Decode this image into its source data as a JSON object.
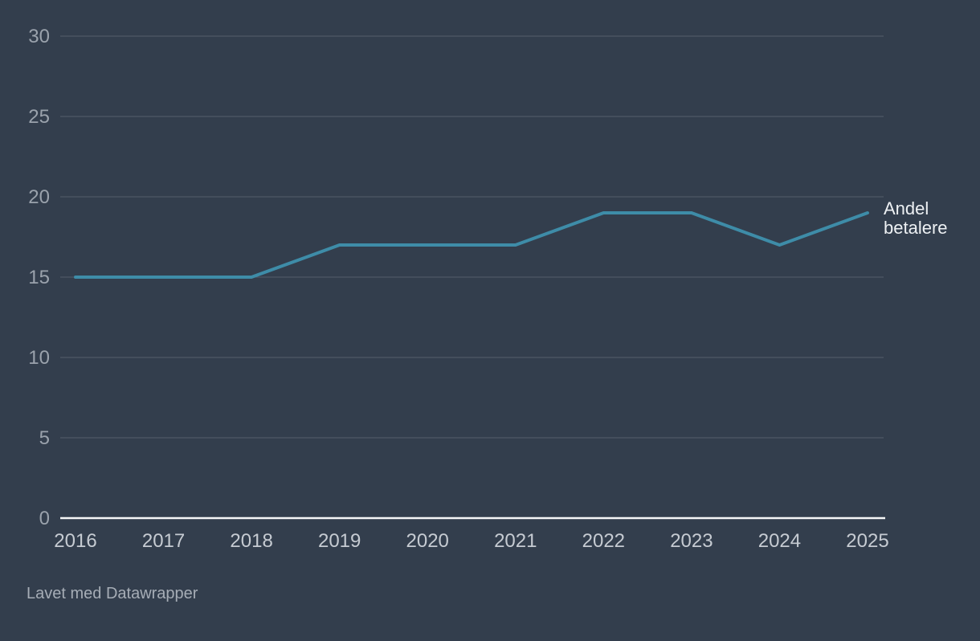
{
  "colors": {
    "background": "#333e4d",
    "line": "#3e8ca8",
    "grid": "#565f6c",
    "baseline": "#f5f6f7",
    "y_tick_text": "#9aa2ac",
    "x_tick_text": "#c6cbd2",
    "series_label_text": "#edf0f3",
    "footer_text": "#a6adb6"
  },
  "footer": {
    "text": "Lavet med Datawrapper"
  },
  "chart_data": {
    "type": "line",
    "categories": [
      "2016",
      "2017",
      "2018",
      "2019",
      "2020",
      "2021",
      "2022",
      "2023",
      "2024",
      "2025"
    ],
    "series": [
      {
        "name": "Andel betalere",
        "values": [
          15,
          15,
          15,
          17,
          17,
          17,
          19,
          19,
          17,
          19
        ]
      }
    ],
    "title": "",
    "xlabel": "",
    "ylabel": "",
    "ylim": [
      0,
      30
    ],
    "yticks": [
      0,
      5,
      10,
      15,
      20,
      25,
      30
    ],
    "grid": true,
    "legend_position": "direct-label-at-line-end"
  }
}
